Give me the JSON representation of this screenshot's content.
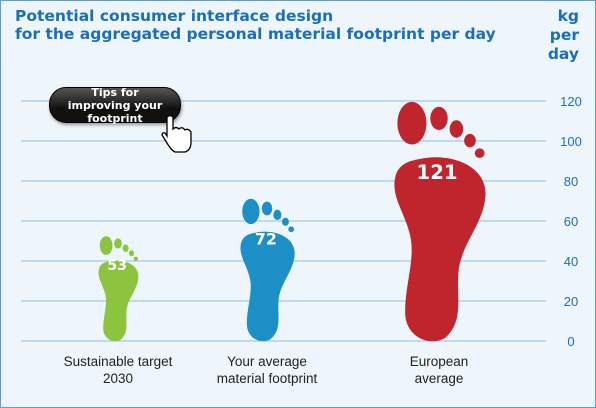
{
  "chart_data": {
    "type": "footprint",
    "title": [
      "Potential consumer interface design",
      "for the aggregated personal material footprint per day"
    ],
    "y_axis_label": "kg per day",
    "annotation": "Tips for improving your footprint",
    "categories": [
      "Sustainable target 2030",
      "Your average material footprint",
      "European average"
    ],
    "values": [
      53,
      72,
      121
    ],
    "colors": [
      "#8cc43f",
      "#1b8fc6",
      "#c0242c"
    ],
    "ylim": [
      0,
      120
    ],
    "yticks": [
      0,
      20,
      40,
      60,
      80,
      100,
      120
    ],
    "grid": true
  }
}
